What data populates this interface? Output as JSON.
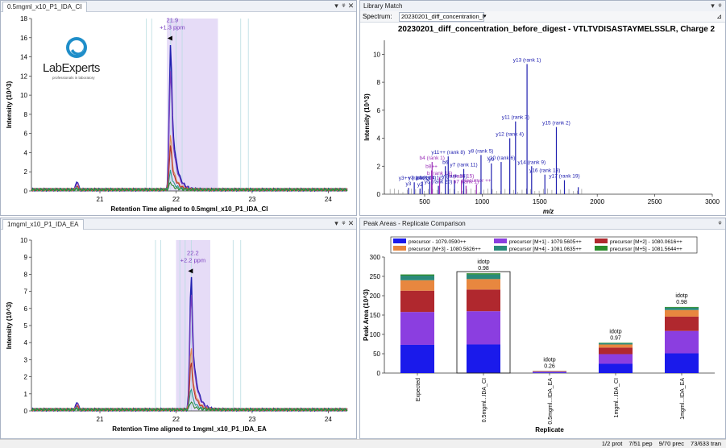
{
  "panes": {
    "chrom_top": {
      "tab": "0.5mgml_x10_P1_IDA_CI"
    },
    "chrom_bottom": {
      "tab": "1mgml_x10_P1_IDA_EA"
    },
    "library": {
      "title": "Library Match",
      "spectrum_label": "Spectrum:",
      "spectrum_value": "20230201_diff_concentration_befc"
    },
    "peak_areas": {
      "title": "Peak Areas - Replicate Comparison"
    }
  },
  "logo": {
    "name": "LabExperts",
    "tagline": "professionals in laboratory",
    "color": "#1f8ec9"
  },
  "chart_data": [
    {
      "type": "line",
      "xlabel": "Retention Time aligned to 0.5mgml_x10_P1_IDA_CI",
      "ylabel": "Intensity (10^3)",
      "xlim": [
        20.1,
        24.25
      ],
      "ylim": [
        0,
        18
      ],
      "x_ticks": [
        "21",
        "22",
        "23",
        "24"
      ],
      "y_ticks": [
        "0",
        "2",
        "4",
        "6",
        "8",
        "10",
        "12",
        "14",
        "16",
        "18"
      ],
      "peak_apex_rt": 21.93,
      "peak_label": [
        "21.9",
        "+1.3 ppm"
      ],
      "integration_window": [
        21.93,
        22.62
      ],
      "shade_window": [
        21.88,
        22.55
      ],
      "series": [
        {
          "color": "#2020b0",
          "values": [
            15.6
          ]
        },
        {
          "color": "#7b3fbd",
          "values": [
            12.8
          ]
        },
        {
          "color": "#e08b4c",
          "values": [
            5.8
          ]
        },
        {
          "color": "#b03030",
          "values": [
            4.6
          ]
        },
        {
          "color": "#2a9d8f",
          "values": [
            2.0
          ]
        },
        {
          "color": "#2e8b2e",
          "values": [
            0.8
          ]
        }
      ]
    },
    {
      "type": "line",
      "xlabel": "Retention Time aligned to 1mgml_x10_P1_IDA_EA",
      "ylabel": "Intensity (10^3)",
      "xlim": [
        20.1,
        24.25
      ],
      "ylim": [
        0,
        10
      ],
      "x_ticks": [
        "21",
        "22",
        "23",
        "24"
      ],
      "y_ticks": [
        "0",
        "1",
        "2",
        "3",
        "4",
        "5",
        "6",
        "7",
        "8",
        "9",
        "10"
      ],
      "peak_apex_rt": 22.2,
      "peak_label": [
        "22.2",
        "+2.2 ppm"
      ],
      "integration_window": [
        22.02,
        22.42
      ],
      "shade_window": [
        22.0,
        22.45
      ],
      "series": [
        {
          "color": "#2020b0",
          "values": [
            8.0
          ]
        },
        {
          "color": "#7b3fbd",
          "values": [
            6.9
          ]
        },
        {
          "color": "#e08b4c",
          "values": [
            3.7
          ]
        },
        {
          "color": "#b03030",
          "values": [
            2.9
          ]
        },
        {
          "color": "#2a9d8f",
          "values": [
            1.3
          ]
        },
        {
          "color": "#2e8b2e",
          "values": [
            0.5
          ]
        }
      ]
    },
    {
      "type": "bar",
      "title": "20230201_diff_concentration_before_digest - VTLTVDISASTAYMELSSLR, Charge 2",
      "xlabel": "m/z",
      "ylabel": "Intensity (10^3)",
      "xlim": [
        150,
        3000
      ],
      "ylim": [
        0,
        11
      ],
      "x_ticks": [
        "500",
        "1000",
        "1500",
        "2000",
        "2500",
        "3000"
      ],
      "y_ticks": [
        "0",
        "2",
        "4",
        "6",
        "8",
        "10"
      ],
      "peaks": [
        {
          "x": 360,
          "y": 0.45,
          "label": "y3",
          "color": "#2020b0"
        },
        {
          "x": 410,
          "y": 0.85,
          "label": "y3++ (rank 1)",
          "color": "#2020b0"
        },
        {
          "x": 460,
          "y": 0.4,
          "label": "y2",
          "color": "#2020b0"
        },
        {
          "x": 480,
          "y": 0.9,
          "label": "y3 (rank 14)",
          "color": "#2020b0"
        },
        {
          "x": 545,
          "y": 0.9,
          "label": "y4 (rank 12)",
          "color": "#2020b0"
        },
        {
          "x": 560,
          "y": 1.7,
          "label": "b8++",
          "color": "#9a2fb8"
        },
        {
          "x": 565,
          "y": 2.3,
          "label": "b4 (rank 1)",
          "color": "#9a2fb8"
        },
        {
          "x": 620,
          "y": 0.6,
          "label": "y5 (rank 20)",
          "color": "#2020b0"
        },
        {
          "x": 630,
          "y": 1.2,
          "label": "b (rank 14)",
          "color": "#9a2fb8"
        },
        {
          "x": 680,
          "y": 2.0,
          "label": "b6",
          "color": "#2020b0"
        },
        {
          "x": 705,
          "y": 2.7,
          "label": "y11++ (rank 8)",
          "color": "#2020b0"
        },
        {
          "x": 760,
          "y": 1.0,
          "label": "y (rank 15)",
          "color": "#2020b0"
        },
        {
          "x": 820,
          "y": 1.0,
          "label": "b (rank 15)",
          "color": "#9a2fb8"
        },
        {
          "x": 860,
          "y": 0.6,
          "label": "b7 (rank 1)",
          "color": "#9a2fb8"
        },
        {
          "x": 840,
          "y": 1.8,
          "label": "y7 (rank 11)",
          "color": "#2020b0"
        },
        {
          "x": 950,
          "y": 0.7,
          "label": "precursor ++",
          "color": "#9a2fb8"
        },
        {
          "x": 990,
          "y": 2.8,
          "label": "y8 (rank 5)",
          "color": "#2020b0"
        },
        {
          "x": 1080,
          "y": 2.2,
          "label": "y9",
          "color": "#2020b0"
        },
        {
          "x": 1165,
          "y": 2.3,
          "label": "y10 (rank 6)",
          "color": "#2020b0"
        },
        {
          "x": 1240,
          "y": 4.0,
          "label": "y12 (rank 4)",
          "color": "#2020b0"
        },
        {
          "x": 1290,
          "y": 5.2,
          "label": "y11 (rank 3)",
          "color": "#2020b0"
        },
        {
          "x": 1390,
          "y": 9.3,
          "label": "y13 (rank 1)",
          "color": "#2020b0"
        },
        {
          "x": 1430,
          "y": 2.0,
          "label": "y14 (rank 9)",
          "color": "#2020b0"
        },
        {
          "x": 1545,
          "y": 1.4,
          "label": "y16 (rank 13)",
          "color": "#2020b0"
        },
        {
          "x": 1645,
          "y": 4.8,
          "label": "y15 (rank 2)",
          "color": "#2020b0"
        },
        {
          "x": 1715,
          "y": 1.0,
          "label": "y17 (rank 19)",
          "color": "#2020b0"
        },
        {
          "x": 1835,
          "y": 0.5,
          "label": "",
          "color": "#2020b0"
        }
      ]
    },
    {
      "type": "bar",
      "xlabel": "Replicate",
      "ylabel": "Peak Area (10^3)",
      "ylim": [
        0,
        300
      ],
      "y_ticks": [
        "0",
        "50",
        "100",
        "150",
        "200",
        "250",
        "300"
      ],
      "categories": [
        "Expected",
        "0.5mgml...IDA_CI",
        "0.5mgml...IDA_EA",
        "1mgml...IDA_CI",
        "1mgml...IDA_EA"
      ],
      "idotp": [
        "",
        "0.98",
        "0.26",
        "0.97",
        "0.98"
      ],
      "idotp_label": "idotp",
      "selected_category": 1,
      "series": [
        {
          "name": "precursor - 1079.0590++",
          "color": "#1a1aeb",
          "values": [
            73,
            74,
            1.6,
            24,
            51
          ]
        },
        {
          "name": "precursor [M+1] - 1079.5605++",
          "color": "#8b3ee0",
          "values": [
            85,
            86,
            1.8,
            25,
            58
          ]
        },
        {
          "name": "precursor [M+2] - 1080.0616++",
          "color": "#b0282e",
          "values": [
            55,
            56,
            1.2,
            17,
            37
          ]
        },
        {
          "name": "precursor [M+3] - 1080.5626++",
          "color": "#e8873f",
          "values": [
            27,
            27,
            0.6,
            8,
            17
          ]
        },
        {
          "name": "precursor [M+4] - 1081.0635++",
          "color": "#2a8a7a",
          "values": [
            12,
            12,
            0.3,
            3.5,
            6
          ]
        },
        {
          "name": "precursor [M+5] - 1081.5644++",
          "color": "#2c8c2c",
          "values": [
            3,
            3,
            0.2,
            1,
            2
          ]
        }
      ]
    }
  ],
  "status": {
    "prot": "1/2 prot",
    "pep": "7/51 pep",
    "prec": "9/70 prec",
    "tran": "73/633 tran"
  }
}
